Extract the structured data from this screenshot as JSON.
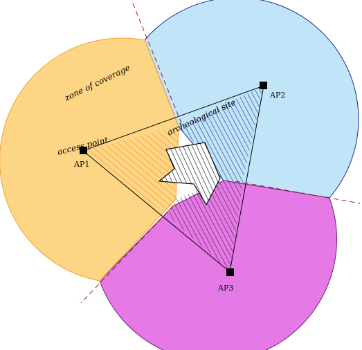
{
  "labels": {
    "zone_of_coverage": "zone of coverage",
    "access_point": "access point",
    "archeological_site": "archeological site"
  },
  "access_points": [
    {
      "id": "ap1",
      "label": "AP1"
    },
    {
      "id": "ap2",
      "label": "AP2"
    },
    {
      "id": "ap3",
      "label": "AP3"
    }
  ],
  "colors": {
    "zone_ap1_fill": "#fdd685",
    "zone_ap1_stroke": "#f0a030",
    "zone_ap2_fill": "#c2e4f8",
    "zone_ap2_stroke": "#1a2f8a",
    "zone_ap3_fill": "#e57ae6",
    "zone_ap3_stroke": "#6a1f7a",
    "hatch_ap1": "#f39a3a",
    "hatch_ap2": "#1a3a9a",
    "hatch_ap3": "#3a1040",
    "boundary_line": "#a01818"
  }
}
